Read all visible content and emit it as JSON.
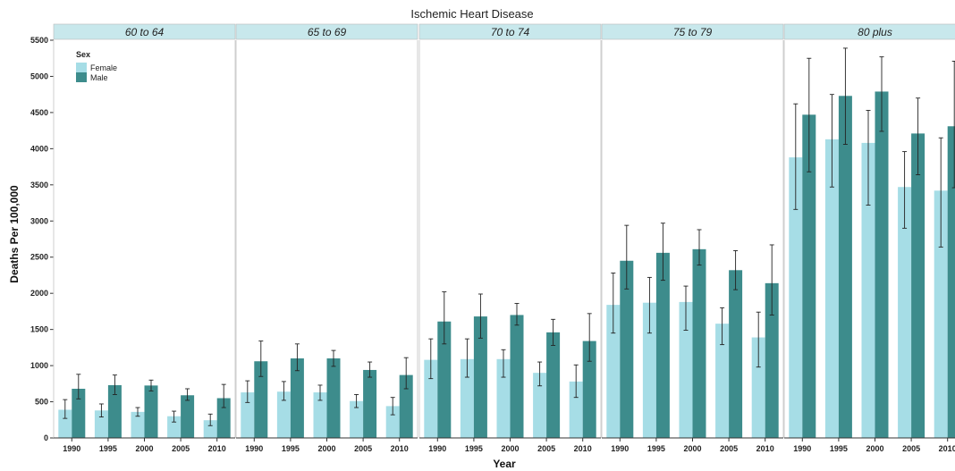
{
  "chart_data": {
    "type": "bar",
    "title": "Ischemic Heart Disease",
    "xlabel": "Year",
    "ylabel": "Deaths Per 100,000",
    "ylim": [
      0,
      5500
    ],
    "yticks": [
      0,
      500,
      1000,
      1500,
      2000,
      2500,
      3000,
      3500,
      4000,
      4500,
      5000,
      5500
    ],
    "categories": [
      "1990",
      "1995",
      "2000",
      "2005",
      "2010"
    ],
    "legend": {
      "title": "Sex",
      "placement": "top-left",
      "entries": [
        "Female",
        "Male"
      ]
    },
    "colors": {
      "Female": "#a6dde6",
      "Male": "#3d8c8c",
      "strip": "#c8e8ec"
    },
    "panels": [
      {
        "label": "60 to 64",
        "series": [
          {
            "name": "Female",
            "values": [
              390,
              380,
              360,
              300,
              245
            ],
            "lower": [
              270,
              290,
              300,
              220,
              170
            ],
            "upper": [
              530,
              470,
              420,
              370,
              330
            ]
          },
          {
            "name": "Male",
            "values": [
              680,
              730,
              725,
              590,
              550
            ],
            "lower": [
              540,
              600,
              650,
              520,
              420
            ],
            "upper": [
              880,
              870,
              800,
              680,
              740
            ]
          }
        ]
      },
      {
        "label": "65 to 69",
        "series": [
          {
            "name": "Female",
            "values": [
              630,
              640,
              630,
              510,
              440
            ],
            "lower": [
              490,
              520,
              520,
              420,
              320
            ],
            "upper": [
              790,
              780,
              730,
              600,
              560
            ]
          },
          {
            "name": "Male",
            "values": [
              1060,
              1100,
              1100,
              940,
              870
            ],
            "lower": [
              850,
              930,
              990,
              840,
              680
            ],
            "upper": [
              1340,
              1300,
              1210,
              1050,
              1110
            ]
          }
        ]
      },
      {
        "label": "70 to 74",
        "series": [
          {
            "name": "Female",
            "values": [
              1080,
              1090,
              1090,
              900,
              780
            ],
            "lower": [
              820,
              840,
              840,
              720,
              560
            ],
            "upper": [
              1370,
              1370,
              1220,
              1050,
              1010
            ]
          },
          {
            "name": "Male",
            "values": [
              1610,
              1680,
              1700,
              1460,
              1340
            ],
            "lower": [
              1300,
              1380,
              1560,
              1280,
              1060
            ],
            "upper": [
              2020,
              1990,
              1860,
              1640,
              1720
            ]
          }
        ]
      },
      {
        "label": "75 to 79",
        "series": [
          {
            "name": "Female",
            "values": [
              1840,
              1870,
              1880,
              1580,
              1390
            ],
            "lower": [
              1450,
              1450,
              1490,
              1290,
              980
            ],
            "upper": [
              2280,
              2220,
              2100,
              1800,
              1740
            ]
          },
          {
            "name": "Male",
            "values": [
              2450,
              2560,
              2610,
              2320,
              2140
            ],
            "lower": [
              2060,
              2180,
              2390,
              2050,
              1700
            ],
            "upper": [
              2940,
              2970,
              2880,
              2590,
              2670
            ]
          }
        ]
      },
      {
        "label": "80 plus",
        "series": [
          {
            "name": "Female",
            "values": [
              3880,
              4130,
              4080,
              3470,
              3420
            ],
            "lower": [
              3160,
              3470,
              3220,
              2900,
              2640
            ],
            "upper": [
              4620,
              4750,
              4530,
              3960,
              4150
            ]
          },
          {
            "name": "Male",
            "values": [
              4470,
              4730,
              4790,
              4210,
              4310
            ],
            "lower": [
              3680,
              4060,
              4240,
              3640,
              3460
            ],
            "upper": [
              5250,
              5390,
              5270,
              4700,
              5210
            ]
          }
        ]
      }
    ]
  }
}
